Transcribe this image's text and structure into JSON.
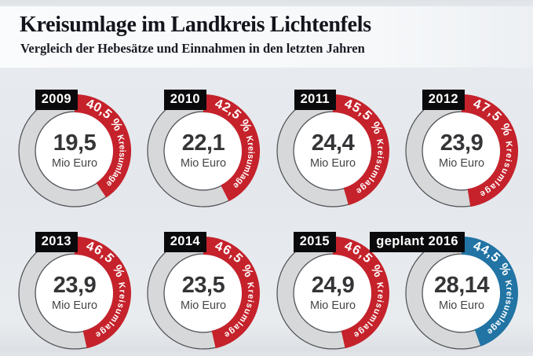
{
  "header": {
    "title": "Kreisumlage im Landkreis Lichtenfels",
    "subtitle": "Vergleich der Hebesätze und Einnahmen in den letzten Jahren"
  },
  "colors": {
    "accent_red": "#c5222b",
    "accent_blue": "#2174a4",
    "ring_gray": "#d7d8d9",
    "ring_outline": "#4d4e52",
    "badge_bg": "#0a0a0c",
    "badge_text": "#ffffff",
    "arc_text": "#ffffff"
  },
  "chart_data": {
    "type": "donut",
    "unit_label": "Mio Euro",
    "arc_word": "Kreisumlage",
    "series": [
      {
        "year_label": "2009",
        "percent": 40.5,
        "percent_label": "40,5 %",
        "value": 19.5,
        "value_label": "19,5",
        "color": "red"
      },
      {
        "year_label": "2010",
        "percent": 42.5,
        "percent_label": "42,5 %",
        "value": 22.1,
        "value_label": "22,1",
        "color": "red"
      },
      {
        "year_label": "2011",
        "percent": 45.5,
        "percent_label": "45,5 %",
        "value": 24.4,
        "value_label": "24,4",
        "color": "red"
      },
      {
        "year_label": "2012",
        "percent": 47.5,
        "percent_label": "47,5 %",
        "value": 23.9,
        "value_label": "23,9",
        "color": "red"
      },
      {
        "year_label": "2013",
        "percent": 46.5,
        "percent_label": "46,5 %",
        "value": 23.9,
        "value_label": "23,9",
        "color": "red"
      },
      {
        "year_label": "2014",
        "percent": 46.5,
        "percent_label": "46,5 %",
        "value": 23.5,
        "value_label": "23,5",
        "color": "red"
      },
      {
        "year_label": "2015",
        "percent": 46.5,
        "percent_label": "46,5 %",
        "value": 24.9,
        "value_label": "24,9",
        "color": "red"
      },
      {
        "year_label": "geplant 2016",
        "percent": 44.5,
        "percent_label": "44,5 %",
        "value": 28.14,
        "value_label": "28,14",
        "color": "blue"
      }
    ]
  }
}
